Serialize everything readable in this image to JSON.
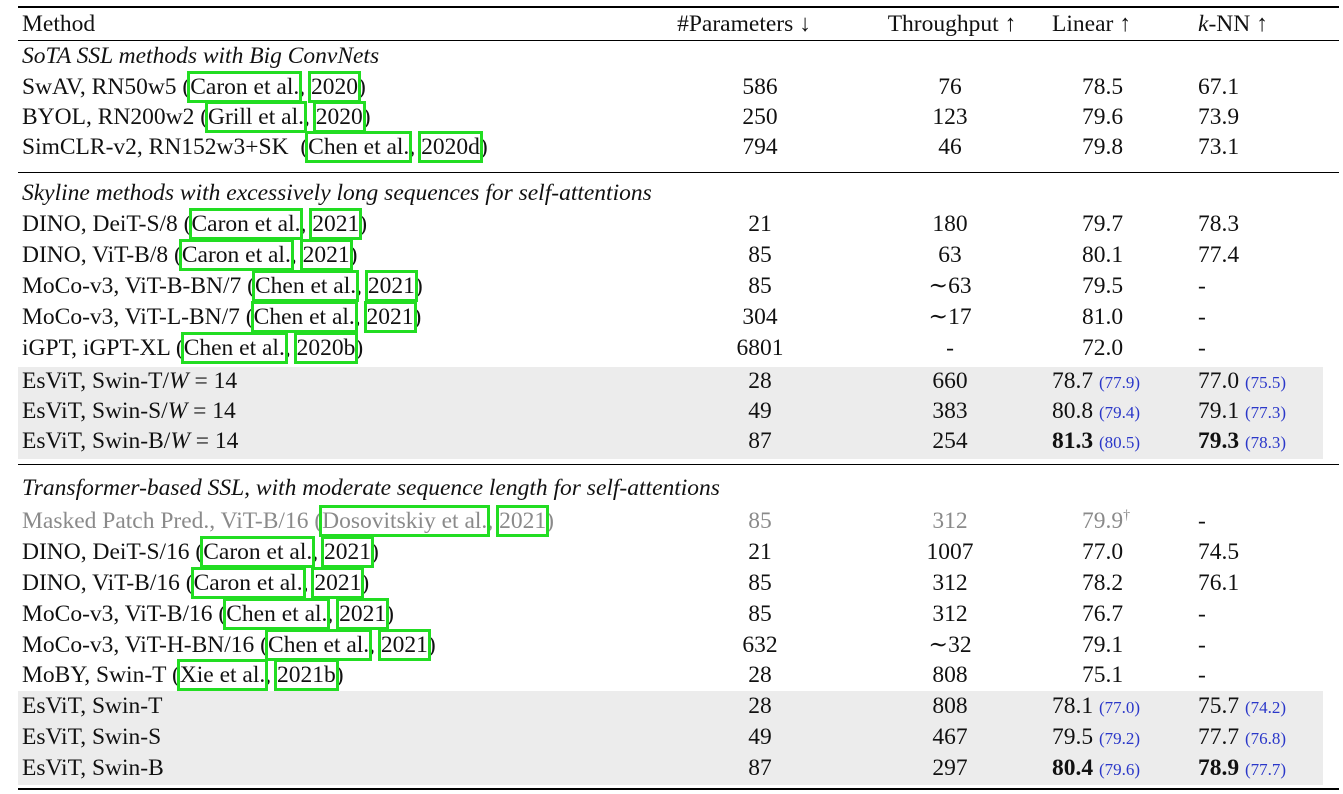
{
  "header": {
    "method": "Method",
    "params": "#Parameters ↓",
    "throughput": "Throughput ↑",
    "linear": "Linear ↑",
    "knn": "k-NN ↑"
  },
  "sections": [
    {
      "title": "SoTA SSL methods with Big ConvNets",
      "rows": [
        {
          "name": "SwAV, RN50w5 (",
          "cite_author": "Caron et al.",
          "cite_year": "2020",
          "close": ")",
          "params": "586",
          "throughput": "76",
          "linear": "78.5",
          "linear_sub": "",
          "knn": "67.1",
          "knn_sub": ""
        },
        {
          "name": "BYOL, RN200w2 (",
          "cite_author": "Grill et al.",
          "cite_year": "2020",
          "close": ")",
          "params": "250",
          "throughput": "123",
          "linear": "79.6",
          "linear_sub": "",
          "knn": "73.9",
          "knn_sub": ""
        },
        {
          "name": "SimCLR-v2, RN152w3+SK  (",
          "cite_author": "Chen et al.",
          "cite_year": "2020d",
          "close": ")",
          "params": "794",
          "throughput": "46",
          "linear": "79.8",
          "linear_sub": "",
          "knn": "73.1",
          "knn_sub": ""
        }
      ]
    },
    {
      "title": "Skyline methods with excessively long sequences for self-attentions",
      "rows": [
        {
          "name": "DINO, DeiT-S/8 (",
          "cite_author": "Caron et al.",
          "cite_year": "2021",
          "close": ")",
          "params": "21",
          "throughput": "180",
          "linear": "79.7",
          "linear_sub": "",
          "knn": "78.3",
          "knn_sub": ""
        },
        {
          "name": "DINO, ViT-B/8 (",
          "cite_author": "Caron et al.",
          "cite_year": "2021",
          "close": ")",
          "params": "85",
          "throughput": "63",
          "linear": "80.1",
          "linear_sub": "",
          "knn": "77.4",
          "knn_sub": ""
        },
        {
          "name": "MoCo-v3, ViT-B-BN/7 (",
          "cite_author": "Chen et al.",
          "cite_year": "2021",
          "close": ")",
          "params": "85",
          "throughput": "∼63",
          "linear": "79.5",
          "linear_sub": "",
          "knn": "-",
          "knn_sub": ""
        },
        {
          "name": "MoCo-v3, ViT-L-BN/7 (",
          "cite_author": "Chen et al.",
          "cite_year": "2021",
          "close": ")",
          "params": "304",
          "throughput": "∼17",
          "linear": "81.0",
          "linear_sub": "",
          "knn": "-",
          "knn_sub": ""
        },
        {
          "name": "iGPT, iGPT-XL (",
          "cite_author": "Chen et al.",
          "cite_year": "2020b",
          "close": ")",
          "params": "6801",
          "throughput": "-",
          "linear": "72.0",
          "linear_sub": "",
          "knn": "-",
          "knn_sub": ""
        }
      ],
      "esvit_rows": [
        {
          "name": "EsViT, Swin-T/",
          "w": "W",
          "eq": " = 14",
          "params": "28",
          "throughput": "660",
          "linear": "78.7",
          "linear_sub": "(77.9)",
          "knn": "77.0",
          "knn_sub": "(75.5)",
          "bold": false
        },
        {
          "name": "EsViT, Swin-S/",
          "w": "W",
          "eq": " = 14",
          "params": "49",
          "throughput": "383",
          "linear": "80.8",
          "linear_sub": "(79.4)",
          "knn": "79.1",
          "knn_sub": "(77.3)",
          "bold": false
        },
        {
          "name": "EsViT, Swin-B/",
          "w": "W",
          "eq": " = 14",
          "params": "87",
          "throughput": "254",
          "linear": "81.3",
          "linear_sub": "(80.5)",
          "knn": "79.3",
          "knn_sub": "(78.3)",
          "bold": true
        }
      ]
    },
    {
      "title": "Transformer-based SSL, with moderate sequence length for self-attentions",
      "rows": [
        {
          "name": "Masked Patch Pred., ViT-B/16 (",
          "cite_author": "Dosovitskiy et al.",
          "cite_year": "2021",
          "close": ")",
          "params": "85",
          "throughput": "312",
          "linear": "79.9",
          "linear_sup": "†",
          "knn": "-",
          "muted": true
        },
        {
          "name": "DINO, DeiT-S/16 (",
          "cite_author": "Caron et al.",
          "cite_year": "2021",
          "close": ")",
          "params": "21",
          "throughput": "1007",
          "linear": "77.0",
          "knn": "74.5"
        },
        {
          "name": "DINO, ViT-B/16 (",
          "cite_author": "Caron et al.",
          "cite_year": "2021",
          "close": ")",
          "params": "85",
          "throughput": "312",
          "linear": "78.2",
          "knn": "76.1"
        },
        {
          "name": "MoCo-v3, ViT-B/16 (",
          "cite_author": "Chen et al.",
          "cite_year": "2021",
          "close": ")",
          "params": "85",
          "throughput": "312",
          "linear": "76.7",
          "knn": "-"
        },
        {
          "name": "MoCo-v3, ViT-H-BN/16 (",
          "cite_author": "Chen et al.",
          "cite_year": "2021",
          "close": ")",
          "params": "632",
          "throughput": "∼32",
          "linear": "79.1",
          "knn": "-"
        },
        {
          "name": "MoBY, Swin-T (",
          "cite_author": "Xie et al.",
          "cite_year": "2021b",
          "close": ")",
          "params": "28",
          "throughput": "808",
          "linear": "75.1",
          "knn": "-"
        }
      ],
      "esvit_rows": [
        {
          "name": "EsViT, Swin-T",
          "params": "28",
          "throughput": "808",
          "linear": "78.1",
          "linear_sub": "(77.0)",
          "knn": "75.7",
          "knn_sub": "(74.2)",
          "bold": false
        },
        {
          "name": "EsViT, Swin-S",
          "params": "49",
          "throughput": "467",
          "linear": "79.5",
          "linear_sub": "(79.2)",
          "knn": "77.7",
          "knn_sub": "(76.8)",
          "bold": false
        },
        {
          "name": "EsViT, Swin-B",
          "params": "87",
          "throughput": "297",
          "linear": "80.4",
          "linear_sub": "(79.6)",
          "knn": "78.9",
          "knn_sub": "(77.7)",
          "bold": true
        }
      ]
    }
  ],
  "colors": {
    "citation_box": "#22dd22",
    "sub_value": "#2a37c9",
    "shade": "#ececec",
    "muted": "#8a8a8a"
  }
}
